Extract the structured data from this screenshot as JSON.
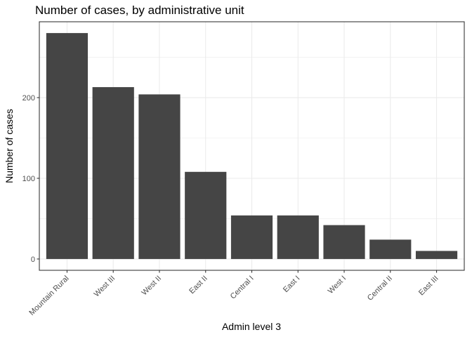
{
  "chart_data": {
    "type": "bar",
    "title": "Number of cases, by administrative unit",
    "xlabel": "Admin level 3",
    "ylabel": "Number of cases",
    "categories": [
      "Mountain Rural",
      "West III",
      "West II",
      "East II",
      "Central I",
      "East I",
      "West I",
      "Central II",
      "East III"
    ],
    "values": [
      280,
      213,
      204,
      108,
      54,
      54,
      42,
      24,
      10
    ],
    "ylim": [
      -14,
      294
    ],
    "yticks": [
      0,
      100,
      200
    ],
    "ytick_labels": [
      "0",
      "100",
      "200"
    ],
    "bar_color": "#454545",
    "grid": true,
    "legend": "none"
  }
}
